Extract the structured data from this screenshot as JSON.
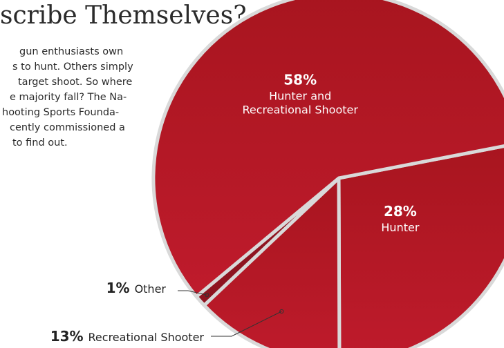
{
  "page": {
    "title": "scribe Themselves?",
    "intro_lines": [
      "gun enthusiasts own",
      "s to hunt. Others simply",
      "target shoot. So where",
      "e majority fall? The Na-",
      "hooting Sports Founda-",
      "cently commissioned a",
      "to find out."
    ]
  },
  "colors": {
    "slice_fill": "#bf1b2c",
    "slice_fill_dark": "#8e1420",
    "separator": "#d9d9d9",
    "leader": "#333333",
    "label_inside": "#ffffff",
    "label_outside": "#222222"
  },
  "chart_data": {
    "type": "pie",
    "title": "",
    "unit": "%",
    "slices": [
      {
        "label": "Hunter and Recreational Shooter",
        "label_lines": [
          "Hunter and",
          "Recreational Shooter"
        ],
        "value": 58,
        "value_text": "58%",
        "label_position": "inside"
      },
      {
        "label": "Hunter",
        "label_lines": [
          "Hunter"
        ],
        "value": 28,
        "value_text": "28%",
        "label_position": "inside"
      },
      {
        "label": "Recreational Shooter",
        "label_lines": [
          "Recreational Shooter"
        ],
        "value": 13,
        "value_text": "13%",
        "label_position": "outside"
      },
      {
        "label": "Other",
        "label_lines": [
          "Other"
        ],
        "value": 1,
        "value_text": "1%",
        "label_position": "outside"
      }
    ]
  }
}
